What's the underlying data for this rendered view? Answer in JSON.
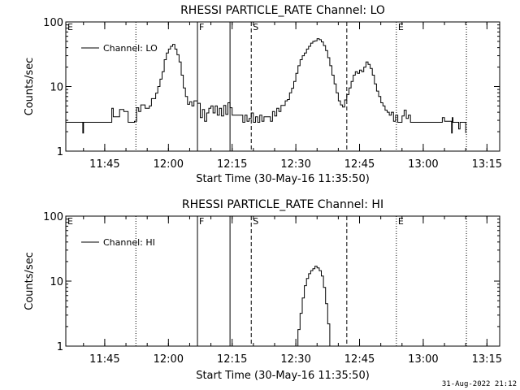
{
  "chart_data": [
    {
      "type": "line",
      "title": "RHESSI PARTICLE_RATE Channel: LO",
      "xlabel": "Start Time (30-May-16 11:35:50)",
      "ylabel": "Counts/sec",
      "yscale": "log",
      "ylim": [
        1,
        100
      ],
      "y_ticks": [
        "1",
        "10",
        "100"
      ],
      "x_ticks": [
        "11:45",
        "12:00",
        "12:15",
        "12:30",
        "12:45",
        "13:00",
        "13:15"
      ],
      "xlim": [
        "11:35:50",
        "13:18:00"
      ],
      "legend": {
        "label": "Channel: LO",
        "position": "top-left"
      },
      "event_markers": [
        {
          "label": "E",
          "time": "11:35:50",
          "style": "none"
        },
        {
          "label": "",
          "time": "11:52:20",
          "style": "dotted"
        },
        {
          "label": "F",
          "time": "12:06:50",
          "style": "solid"
        },
        {
          "label": "",
          "time": "12:14:30",
          "style": "solid"
        },
        {
          "label": "S",
          "time": "12:19:30",
          "style": "dashed"
        },
        {
          "label": "",
          "time": "12:42:00",
          "style": "dashed"
        },
        {
          "label": "E",
          "time": "12:53:40",
          "style": "dotted"
        },
        {
          "label": "",
          "time": "13:10:10",
          "style": "dotted"
        }
      ],
      "series": [
        {
          "name": "Channel: LO",
          "points": [
            [
              "11:35:50",
              2.8
            ],
            [
              "11:39:40",
              2.8
            ],
            [
              "11:39:50",
              1.9
            ],
            [
              "11:40:00",
              2.8
            ],
            [
              "11:46:30",
              2.8
            ],
            [
              "11:46:40",
              4.6
            ],
            [
              "11:47:00",
              3.4
            ],
            [
              "11:48:00",
              3.4
            ],
            [
              "11:48:30",
              4.4
            ],
            [
              "11:49:30",
              4.1
            ],
            [
              "11:50:30",
              2.8
            ],
            [
              "11:52:00",
              2.9
            ],
            [
              "11:52:30",
              4.7
            ],
            [
              "11:53:00",
              4.1
            ],
            [
              "11:53:30",
              5.2
            ],
            [
              "11:54:30",
              4.6
            ],
            [
              "11:55:30",
              5.0
            ],
            [
              "11:56:00",
              6.5
            ],
            [
              "11:57:00",
              7.9
            ],
            [
              "11:57:30",
              10.0
            ],
            [
              "11:58:00",
              13.0
            ],
            [
              "11:58:30",
              17.0
            ],
            [
              "11:59:00",
              26.0
            ],
            [
              "11:59:30",
              33.0
            ],
            [
              "12:00:00",
              38.0
            ],
            [
              "12:00:30",
              42.0
            ],
            [
              "12:01:00",
              45.0
            ],
            [
              "12:01:30",
              38.0
            ],
            [
              "12:02:00",
              31.0
            ],
            [
              "12:02:30",
              24.0
            ],
            [
              "12:03:00",
              15.0
            ],
            [
              "12:03:30",
              9.5
            ],
            [
              "12:04:00",
              7.0
            ],
            [
              "12:04:30",
              5.3
            ],
            [
              "12:05:00",
              5.8
            ],
            [
              "12:05:30",
              5.0
            ],
            [
              "12:06:00",
              6.0
            ],
            [
              "12:06:50",
              5.5
            ],
            [
              "12:07:30",
              3.3
            ],
            [
              "12:08:00",
              4.4
            ],
            [
              "12:08:30",
              2.9
            ],
            [
              "12:09:00",
              3.9
            ],
            [
              "12:09:30",
              4.6
            ],
            [
              "12:10:00",
              5.0
            ],
            [
              "12:10:30",
              3.9
            ],
            [
              "12:11:00",
              5.0
            ],
            [
              "12:11:30",
              3.6
            ],
            [
              "12:12:00",
              4.6
            ],
            [
              "12:12:30",
              3.5
            ],
            [
              "12:13:00",
              5.1
            ],
            [
              "12:13:30",
              3.7
            ],
            [
              "12:14:00",
              5.6
            ],
            [
              "12:14:30",
              4.7
            ],
            [
              "12:15:00",
              3.6
            ],
            [
              "12:16:00",
              3.6
            ],
            [
              "12:17:00",
              3.6
            ],
            [
              "12:17:30",
              2.8
            ],
            [
              "12:18:00",
              3.6
            ],
            [
              "12:18:30",
              2.9
            ],
            [
              "12:19:00",
              3.2
            ],
            [
              "12:19:30",
              3.9
            ],
            [
              "12:20:00",
              2.8
            ],
            [
              "12:20:30",
              3.4
            ],
            [
              "12:21:00",
              2.8
            ],
            [
              "12:21:30",
              3.6
            ],
            [
              "12:22:00",
              2.9
            ],
            [
              "12:22:30",
              3.4
            ],
            [
              "12:23:30",
              3.4
            ],
            [
              "12:24:00",
              2.9
            ],
            [
              "12:24:30",
              4.1
            ],
            [
              "12:25:00",
              3.5
            ],
            [
              "12:25:30",
              4.6
            ],
            [
              "12:26:00",
              4.1
            ],
            [
              "12:26:30",
              5.1
            ],
            [
              "12:27:00",
              5.1
            ],
            [
              "12:27:30",
              6.0
            ],
            [
              "12:28:00",
              6.3
            ],
            [
              "12:28:30",
              8.0
            ],
            [
              "12:29:00",
              9.4
            ],
            [
              "12:29:30",
              12.0
            ],
            [
              "12:30:00",
              16.0
            ],
            [
              "12:30:30",
              21.0
            ],
            [
              "12:31:00",
              26.0
            ],
            [
              "12:31:30",
              30.0
            ],
            [
              "12:32:00",
              33.0
            ],
            [
              "12:32:30",
              38.0
            ],
            [
              "12:33:00",
              42.0
            ],
            [
              "12:33:30",
              47.0
            ],
            [
              "12:34:00",
              50.0
            ],
            [
              "12:34:30",
              51.0
            ],
            [
              "12:35:00",
              55.0
            ],
            [
              "12:35:30",
              53.0
            ],
            [
              "12:36:00",
              49.0
            ],
            [
              "12:36:30",
              43.0
            ],
            [
              "12:37:00",
              36.0
            ],
            [
              "12:37:30",
              28.0
            ],
            [
              "12:38:00",
              21.0
            ],
            [
              "12:38:30",
              15.0
            ],
            [
              "12:39:00",
              11.0
            ],
            [
              "12:39:30",
              8.0
            ],
            [
              "12:40:00",
              6.0
            ],
            [
              "12:40:30",
              5.2
            ],
            [
              "12:41:00",
              4.8
            ],
            [
              "12:41:30",
              6.2
            ],
            [
              "12:42:00",
              7.5
            ],
            [
              "12:42:30",
              9.5
            ],
            [
              "12:43:00",
              12.0
            ],
            [
              "12:43:30",
              15.0
            ],
            [
              "12:44:00",
              17.0
            ],
            [
              "12:44:30",
              16.0
            ],
            [
              "12:45:00",
              18.0
            ],
            [
              "12:45:30",
              17.0
            ],
            [
              "12:46:00",
              20.0
            ],
            [
              "12:46:30",
              24.0
            ],
            [
              "12:47:00",
              22.0
            ],
            [
              "12:47:30",
              19.0
            ],
            [
              "12:48:00",
              15.0
            ],
            [
              "12:48:30",
              11.0
            ],
            [
              "12:49:00",
              8.5
            ],
            [
              "12:49:30",
              7.0
            ],
            [
              "12:50:00",
              5.6
            ],
            [
              "12:50:30",
              5.0
            ],
            [
              "12:51:00",
              4.3
            ],
            [
              "12:51:30",
              4.0
            ],
            [
              "12:52:00",
              3.6
            ],
            [
              "12:52:30",
              4.0
            ],
            [
              "12:53:00",
              2.9
            ],
            [
              "12:53:30",
              3.6
            ],
            [
              "12:54:00",
              2.8
            ],
            [
              "12:55:00",
              3.5
            ],
            [
              "12:55:30",
              4.3
            ],
            [
              "12:56:00",
              3.2
            ],
            [
              "12:56:30",
              3.6
            ],
            [
              "12:57:00",
              2.8
            ],
            [
              "13:03:00",
              2.8
            ],
            [
              "13:04:00",
              2.8
            ],
            [
              "13:04:30",
              3.3
            ],
            [
              "13:05:00",
              2.9
            ],
            [
              "13:06:30",
              2.9
            ],
            [
              "13:06:40",
              1.9
            ],
            [
              "13:06:50",
              3.3
            ],
            [
              "13:07:00",
              2.8
            ],
            [
              "13:08:00",
              2.8
            ],
            [
              "13:08:20",
              2.2
            ],
            [
              "13:08:40",
              2.8
            ],
            [
              "13:09:40",
              2.8
            ],
            [
              "13:10:00",
              1.9
            ]
          ]
        }
      ]
    },
    {
      "type": "line",
      "title": "RHESSI PARTICLE_RATE Channel: HI",
      "xlabel": "Start Time (30-May-16 11:35:50)",
      "ylabel": "Counts/sec",
      "yscale": "log",
      "ylim": [
        1,
        100
      ],
      "y_ticks": [
        "1",
        "10",
        "100"
      ],
      "x_ticks": [
        "11:45",
        "12:00",
        "12:15",
        "12:30",
        "12:45",
        "13:00",
        "13:15"
      ],
      "xlim": [
        "11:35:50",
        "13:18:00"
      ],
      "legend": {
        "label": "Channel: HI",
        "position": "top-left"
      },
      "event_markers": [
        {
          "label": "E",
          "time": "11:35:50",
          "style": "none"
        },
        {
          "label": "",
          "time": "11:52:20",
          "style": "dotted"
        },
        {
          "label": "F",
          "time": "12:06:50",
          "style": "solid"
        },
        {
          "label": "",
          "time": "12:14:30",
          "style": "solid"
        },
        {
          "label": "S",
          "time": "12:19:30",
          "style": "dashed"
        },
        {
          "label": "",
          "time": "12:42:00",
          "style": "dashed"
        },
        {
          "label": "E",
          "time": "12:53:40",
          "style": "dotted"
        },
        {
          "label": "",
          "time": "13:10:10",
          "style": "dotted"
        }
      ],
      "series": [
        {
          "name": "Channel: HI",
          "points": [
            [
              "12:30:00",
              1.0
            ],
            [
              "12:30:30",
              1.8
            ],
            [
              "12:31:00",
              3.2
            ],
            [
              "12:31:30",
              5.5
            ],
            [
              "12:32:00",
              8.5
            ],
            [
              "12:32:30",
              11.0
            ],
            [
              "12:33:00",
              13.0
            ],
            [
              "12:33:30",
              14.5
            ],
            [
              "12:34:00",
              15.5
            ],
            [
              "12:34:30",
              17.0
            ],
            [
              "12:35:00",
              16.0
            ],
            [
              "12:35:30",
              14.5
            ],
            [
              "12:36:00",
              12.0
            ],
            [
              "12:36:30",
              8.0
            ],
            [
              "12:37:00",
              4.5
            ],
            [
              "12:37:30",
              2.2
            ],
            [
              "12:38:00",
              1.0
            ]
          ]
        }
      ]
    }
  ],
  "footer": {
    "timestamp": "31-Aug-2022 21:12"
  }
}
